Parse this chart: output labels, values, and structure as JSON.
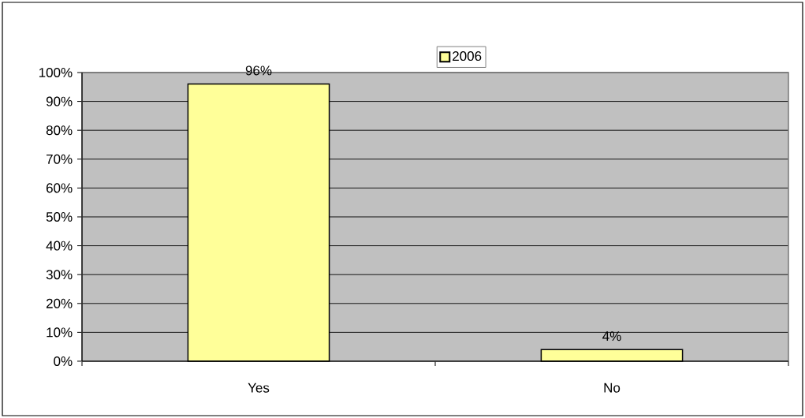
{
  "chart_data": {
    "type": "bar",
    "categories": [
      "Yes",
      "No"
    ],
    "series": [
      {
        "name": "2006",
        "color": "#ffff99",
        "values": [
          96,
          4
        ],
        "value_labels": [
          "96%",
          "4%"
        ]
      }
    ],
    "ylim": [
      0,
      100
    ],
    "yticks": [
      {
        "value": 0,
        "label": "0%"
      },
      {
        "value": 10,
        "label": "10%"
      },
      {
        "value": 20,
        "label": "20%"
      },
      {
        "value": 30,
        "label": "30%"
      },
      {
        "value": 40,
        "label": "40%"
      },
      {
        "value": 50,
        "label": "50%"
      },
      {
        "value": 60,
        "label": "60%"
      },
      {
        "value": 70,
        "label": "70%"
      },
      {
        "value": 80,
        "label": "80%"
      },
      {
        "value": 90,
        "label": "90%"
      },
      {
        "value": 100,
        "label": "100%"
      }
    ],
    "grid": "y",
    "legend": "top"
  }
}
